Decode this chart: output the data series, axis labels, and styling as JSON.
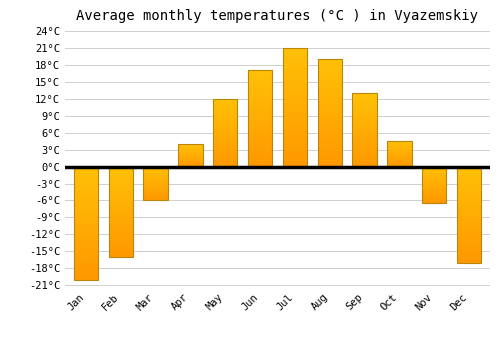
{
  "title": "Average monthly temperatures (°C ) in Vyazemskiy",
  "months": [
    "Jan",
    "Feb",
    "Mar",
    "Apr",
    "May",
    "Jun",
    "Jul",
    "Aug",
    "Sep",
    "Oct",
    "Nov",
    "Dec"
  ],
  "values": [
    -20,
    -16,
    -6,
    4,
    12,
    17,
    21,
    19,
    13,
    4.5,
    -6.5,
    -17
  ],
  "bar_color_top": "#FFC107",
  "bar_color_bottom": "#FF9800",
  "ylim_min": -21,
  "ylim_max": 24,
  "yticks": [
    -21,
    -18,
    -15,
    -12,
    -9,
    -6,
    -3,
    0,
    3,
    6,
    9,
    12,
    15,
    18,
    21,
    24
  ],
  "background_color": "#ffffff",
  "grid_color": "#d0d0d0",
  "title_fontsize": 10,
  "tick_fontsize": 7.5,
  "font_family": "monospace",
  "bar_width": 0.7,
  "edge_color": "#b8860b"
}
